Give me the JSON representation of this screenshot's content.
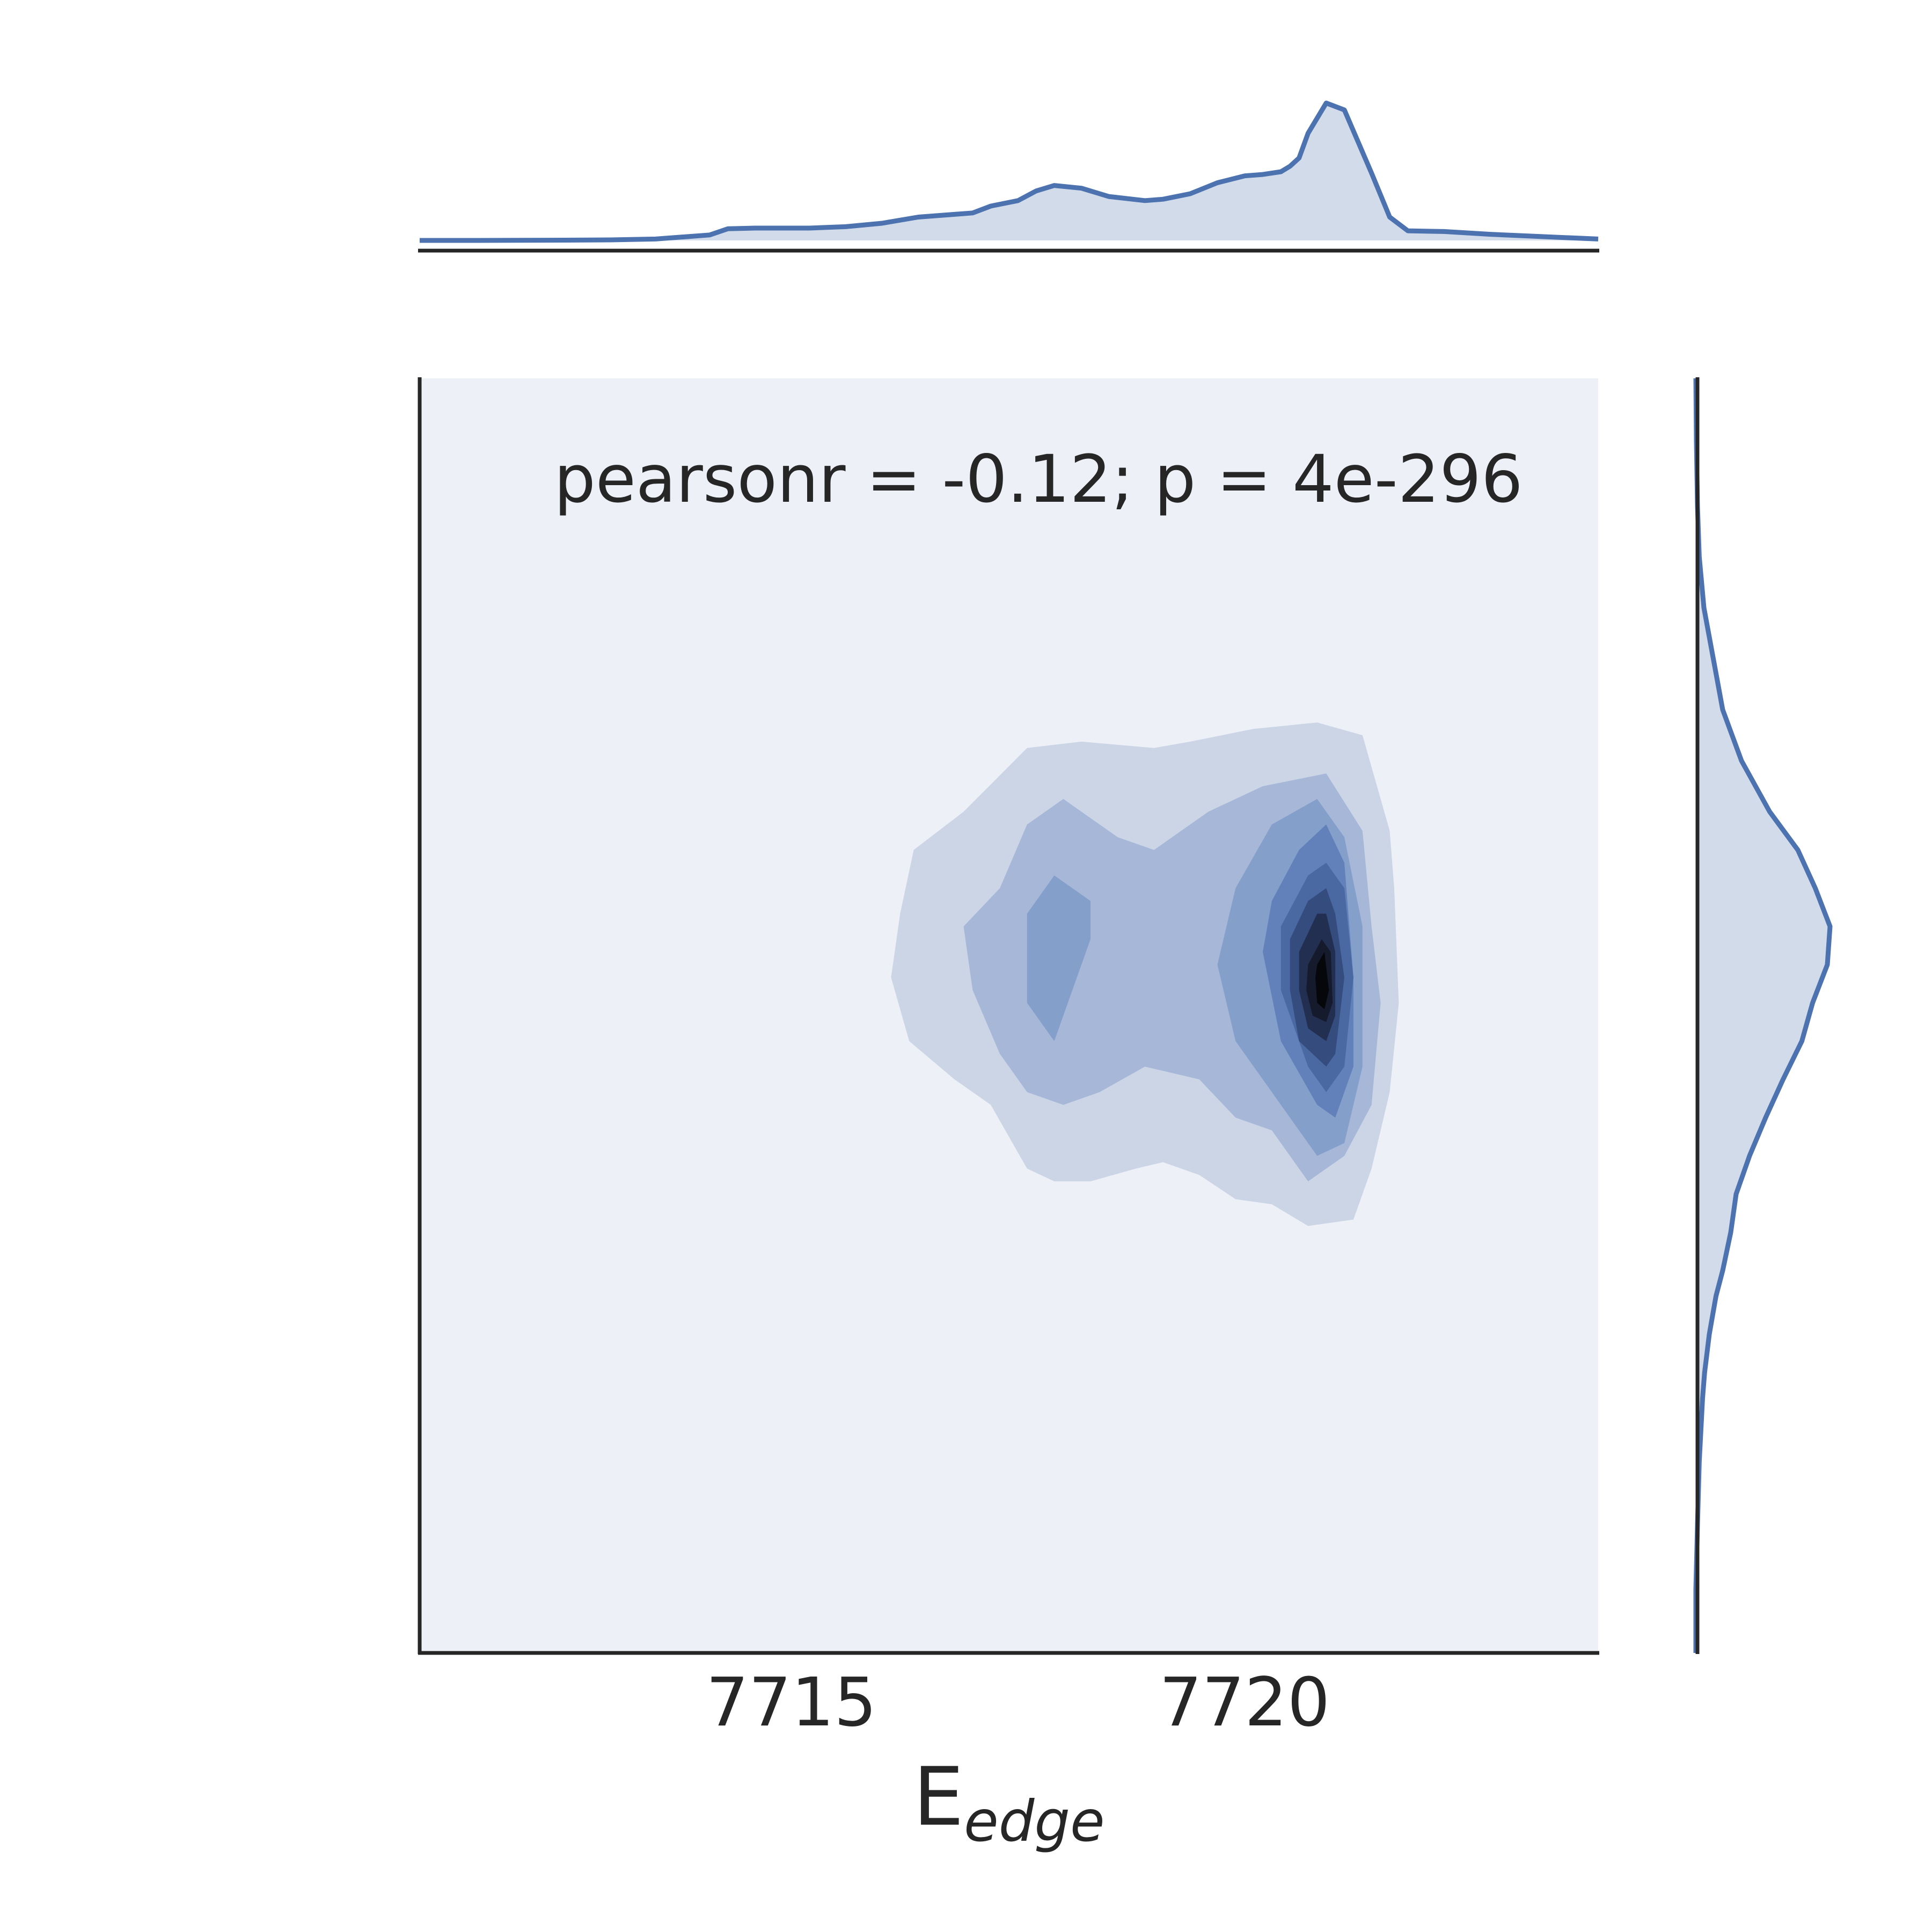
{
  "chart_data": {
    "type": "jointplot-kde",
    "annotation": "pearsonr = -0.12; p = 4e-296",
    "xlabel": {
      "main": "E",
      "subscript": "edge"
    },
    "ylabel": "",
    "xlim": [
      7710.9,
      7723.9
    ],
    "ylim": [
      0,
      1
    ],
    "xticks": [
      7715,
      7720
    ],
    "xtick_labels": [
      "7715",
      "7720"
    ],
    "yticks": [],
    "colors": {
      "line": "#4c72b0",
      "fill": "#d2dbea",
      "joint_background": "#edf0f7",
      "spine": "#262626",
      "levels": [
        "#cbd5e6",
        "#a6b7d8",
        "#859fcb",
        "#6281ba",
        "#4a69a3",
        "#354d7e",
        "#232f50",
        "#151b2c",
        "#05070b"
      ]
    },
    "marginal_x": {
      "x": [
        7710.9,
        7711.5,
        7712,
        7712.5,
        7713,
        7713.5,
        7713.8,
        7714.1,
        7714.3,
        7714.6,
        7714.9,
        7715.2,
        7715.6,
        7716,
        7716.4,
        7716.8,
        7717,
        7717.2,
        7717.5,
        7717.7,
        7717.9,
        7718.2,
        7718.5,
        7718.9,
        7719.1,
        7719.4,
        7719.7,
        7720,
        7720.2,
        7720.4,
        7720.5,
        7720.6,
        7720.7,
        7720.9,
        7721.1,
        7721.4,
        7721.6,
        7721.8,
        7722.2,
        7722.7,
        7723.2,
        7723.9
      ],
      "density": [
        0.0,
        0.0,
        0.001,
        0.002,
        0.004,
        0.01,
        0.025,
        0.04,
        0.085,
        0.09,
        0.09,
        0.09,
        0.1,
        0.125,
        0.17,
        0.19,
        0.2,
        0.25,
        0.29,
        0.36,
        0.4,
        0.38,
        0.32,
        0.29,
        0.3,
        0.34,
        0.42,
        0.47,
        0.48,
        0.5,
        0.54,
        0.6,
        0.78,
        1.0,
        0.95,
        0.49,
        0.17,
        0.07,
        0.065,
        0.045,
        0.03,
        0.01
      ]
    },
    "marginal_y": {
      "y": [
        0.0,
        0.05,
        0.1,
        0.15,
        0.2,
        0.22,
        0.25,
        0.28,
        0.3,
        0.33,
        0.36,
        0.39,
        0.42,
        0.45,
        0.48,
        0.51,
        0.54,
        0.57,
        0.6,
        0.63,
        0.66,
        0.7,
        0.74,
        0.78,
        0.82,
        0.86,
        0.9,
        0.95,
        1.0
      ],
      "density": [
        0.0,
        0.0,
        0.012,
        0.025,
        0.05,
        0.065,
        0.1,
        0.15,
        0.2,
        0.26,
        0.3,
        0.4,
        0.52,
        0.65,
        0.79,
        0.87,
        0.98,
        1.0,
        0.89,
        0.76,
        0.55,
        0.34,
        0.2,
        0.13,
        0.06,
        0.025,
        0.012,
        0.004,
        0.0
      ]
    },
    "joint_kde_contours": [
      {
        "level": 1,
        "polygons": [
          [
            [
              7716.2,
              0.58
            ],
            [
              7716.35,
              0.63
            ],
            [
              7716.9,
              0.66
            ],
            [
              7717.6,
              0.71
            ],
            [
              7718.2,
              0.715
            ],
            [
              7719,
              0.71
            ],
            [
              7719.4,
              0.715
            ],
            [
              7720.1,
              0.725
            ],
            [
              7720.8,
              0.73
            ],
            [
              7721.3,
              0.72
            ],
            [
              7721.6,
              0.645
            ],
            [
              7721.65,
              0.6
            ],
            [
              7721.7,
              0.51
            ],
            [
              7721.6,
              0.44
            ],
            [
              7721.4,
              0.38
            ],
            [
              7721.2,
              0.34
            ],
            [
              7720.7,
              0.335
            ],
            [
              7720.3,
              0.352
            ],
            [
              7719.9,
              0.356
            ],
            [
              7719.5,
              0.375
            ],
            [
              7719.1,
              0.385
            ],
            [
              7718.8,
              0.38
            ],
            [
              7718.3,
              0.37
            ],
            [
              7717.9,
              0.37
            ],
            [
              7717.6,
              0.38
            ],
            [
              7717.2,
              0.43
            ],
            [
              7716.8,
              0.45
            ],
            [
              7716.3,
              0.48
            ],
            [
              7716.1,
              0.53
            ]
          ]
        ]
      },
      {
        "level": 2,
        "polygons": [
          [
            [
              7716.9,
              0.57
            ],
            [
              7717.3,
              0.6
            ],
            [
              7717.6,
              0.65
            ],
            [
              7718,
              0.67
            ],
            [
              7718.6,
              0.64
            ],
            [
              7719,
              0.63
            ],
            [
              7719.6,
              0.66
            ],
            [
              7720.2,
              0.68
            ],
            [
              7720.9,
              0.69
            ],
            [
              7721.3,
              0.645
            ],
            [
              7721.4,
              0.57
            ],
            [
              7721.5,
              0.51
            ],
            [
              7721.4,
              0.43
            ],
            [
              7721.1,
              0.39
            ],
            [
              7720.7,
              0.37
            ],
            [
              7720.3,
              0.41
            ],
            [
              7719.9,
              0.42
            ],
            [
              7719.5,
              0.45
            ],
            [
              7718.9,
              0.46
            ],
            [
              7718.4,
              0.44
            ],
            [
              7718,
              0.43
            ],
            [
              7717.6,
              0.44
            ],
            [
              7717.3,
              0.47
            ],
            [
              7717,
              0.52
            ]
          ]
        ]
      },
      {
        "level": 3,
        "polygons": [
          [
            [
              7717.6,
              0.51
            ],
            [
              7717.6,
              0.58
            ],
            [
              7717.9,
              0.61
            ],
            [
              7718.3,
              0.59
            ],
            [
              7718.3,
              0.56
            ],
            [
              7718.1,
              0.52
            ],
            [
              7717.9,
              0.48
            ]
          ],
          [
            [
              7719.9,
              0.6
            ],
            [
              7720.3,
              0.65
            ],
            [
              7720.8,
              0.67
            ],
            [
              7721.1,
              0.64
            ],
            [
              7721.3,
              0.57
            ],
            [
              7721.3,
              0.46
            ],
            [
              7721.1,
              0.4
            ],
            [
              7720.8,
              0.39
            ],
            [
              7720.3,
              0.44
            ],
            [
              7719.9,
              0.48
            ],
            [
              7719.7,
              0.54
            ]
          ]
        ]
      },
      {
        "level": 4,
        "polygons": [
          [
            [
              7720.3,
              0.59
            ],
            [
              7720.6,
              0.63
            ],
            [
              7720.9,
              0.65
            ],
            [
              7721.1,
              0.62
            ],
            [
              7721.2,
              0.53
            ],
            [
              7721.2,
              0.46
            ],
            [
              7721,
              0.42
            ],
            [
              7720.8,
              0.43
            ],
            [
              7720.4,
              0.48
            ],
            [
              7720.2,
              0.55
            ]
          ]
        ]
      },
      {
        "level": 5,
        "polygons": [
          [
            [
              7720.4,
              0.57
            ],
            [
              7720.7,
              0.61
            ],
            [
              7720.9,
              0.62
            ],
            [
              7721.1,
              0.6
            ],
            [
              7721.2,
              0.53
            ],
            [
              7721.1,
              0.46
            ],
            [
              7720.9,
              0.44
            ],
            [
              7720.7,
              0.46
            ],
            [
              7720.4,
              0.52
            ]
          ]
        ]
      },
      {
        "level": 6,
        "polygons": [
          [
            [
              7720.5,
              0.56
            ],
            [
              7720.7,
              0.59
            ],
            [
              7720.9,
              0.6
            ],
            [
              7721,
              0.58
            ],
            [
              7721.1,
              0.53
            ],
            [
              7721,
              0.47
            ],
            [
              7720.9,
              0.46
            ],
            [
              7720.6,
              0.48
            ],
            [
              7720.5,
              0.52
            ]
          ]
        ]
      },
      {
        "level": 7,
        "polygons": [
          [
            [
              7720.6,
              0.55
            ],
            [
              7720.8,
              0.58
            ],
            [
              7720.9,
              0.58
            ],
            [
              7721,
              0.55
            ],
            [
              7721,
              0.5
            ],
            [
              7720.9,
              0.48
            ],
            [
              7720.7,
              0.49
            ],
            [
              7720.6,
              0.52
            ]
          ]
        ]
      },
      {
        "level": 8,
        "polygons": [
          [
            [
              7720.7,
              0.54
            ],
            [
              7720.85,
              0.56
            ],
            [
              7720.95,
              0.55
            ],
            [
              7720.97,
              0.51
            ],
            [
              7720.9,
              0.495
            ],
            [
              7720.75,
              0.5
            ],
            [
              7720.68,
              0.52
            ]
          ]
        ]
      },
      {
        "level": 9,
        "polygons": [
          [
            [
              7720.8,
              0.54
            ],
            [
              7720.88,
              0.55
            ],
            [
              7720.93,
              0.52
            ],
            [
              7720.88,
              0.505
            ],
            [
              7720.8,
              0.51
            ],
            [
              7720.78,
              0.53
            ]
          ]
        ]
      }
    ]
  }
}
